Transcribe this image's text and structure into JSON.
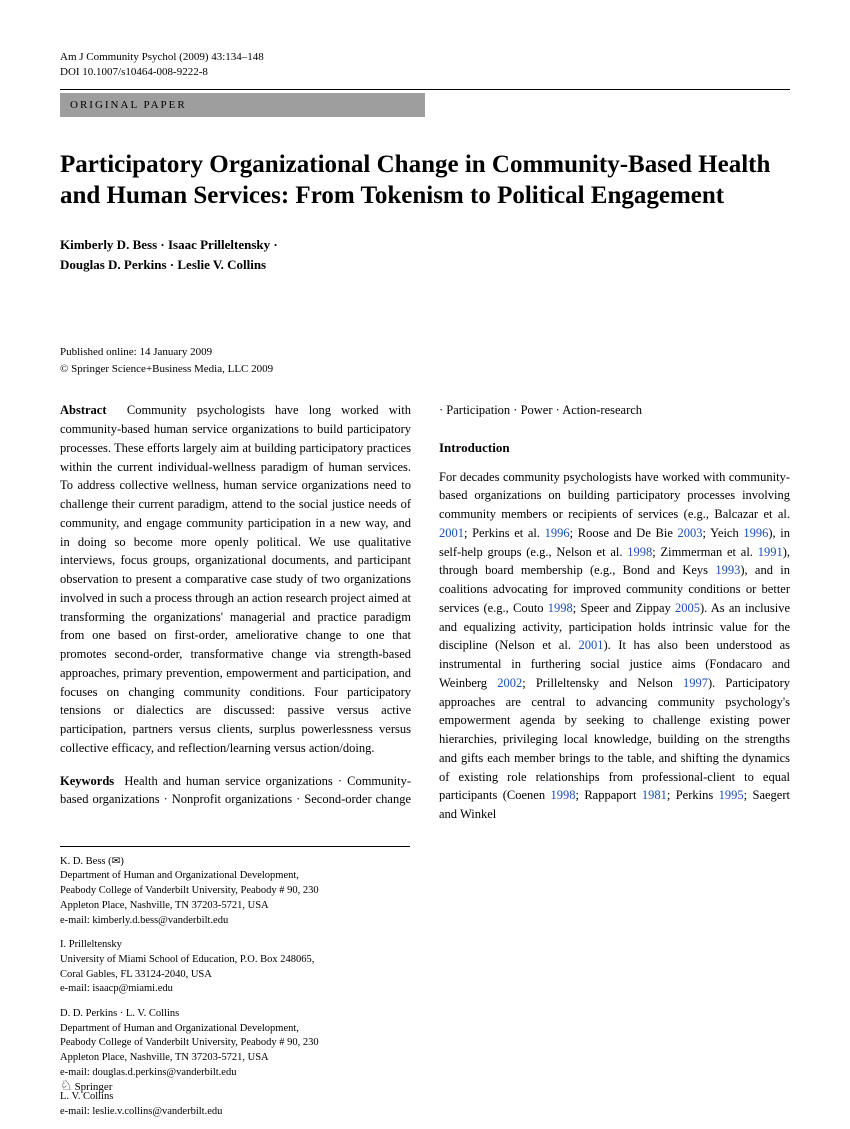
{
  "header": {
    "journal_line": "Am J Community Psychol (2009) 43:134–148",
    "doi_line": "DOI 10.1007/s10464-008-9222-8",
    "category": "ORIGINAL PAPER"
  },
  "title": "Participatory Organizational Change in Community-Based Health and Human Services: From Tokenism to Political Engagement",
  "authors_line1": "Kimberly D. Bess · Isaac Prilleltensky ·",
  "authors_line2": "Douglas D. Perkins · Leslie V. Collins",
  "pub": {
    "published": "Published online: 14 January 2009",
    "copyright": "© Springer Science+Business Media, LLC 2009"
  },
  "abstract": {
    "label": "Abstract",
    "text": "Community psychologists have long worked with community-based human service organizations to build participatory processes. These efforts largely aim at building participatory practices within the current individual-wellness paradigm of human services. To address collective wellness, human service organizations need to challenge their current paradigm, attend to the social justice needs of community, and engage community participation in a new way, and in doing so become more openly political. We use qualitative interviews, focus groups, organizational documents, and participant observation to present a comparative case study of two organizations involved in such a process through an action research project aimed at transforming the organizations' managerial and practice paradigm from one based on first-order, ameliorative change to one that promotes second-order, transformative change via strength-based approaches, primary prevention, empowerment and participation, and focuses on changing community conditions. Four participatory tensions or dialectics are discussed: passive versus active participation, partners versus clients, surplus powerlessness versus collective efficacy, and reflection/learning versus action/doing."
  },
  "keywords": {
    "label": "Keywords",
    "text": "Health and human service organizations · Community-based organizations · Nonprofit organizations · Second-order change · Participation · Power · Action-research"
  },
  "intro": {
    "heading": "Introduction",
    "p1a": "For decades community psychologists have worked with community-based organizations on building participatory processes involving community members or recipients of services (e.g., Balcazar et al. ",
    "r1": "2001",
    "p1b": "; Perkins et al. ",
    "r2": "1996",
    "p1c": "; Roose and De Bie ",
    "r3": "2003",
    "p1d": "; Yeich ",
    "r4": "1996",
    "p1e": "), in self-help groups (e.g., Nelson et al. ",
    "r5": "1998",
    "p1f": "; Zimmerman et al. ",
    "r6": "1991",
    "p1g": "), through board membership (e.g., Bond and Keys ",
    "r7": "1993",
    "p1h": "), and in coalitions advocating for improved community conditions or better services (e.g., Couto ",
    "r8": "1998",
    "p1i": "; Speer and Zippay ",
    "r9": "2005",
    "p1j": "). As an inclusive and equalizing activity, participation holds intrinsic value for the discipline (Nelson et al. ",
    "r10": "2001",
    "p1k": "). It has also been understood as instrumental in furthering social justice aims (Fondacaro and Weinberg ",
    "r11": "2002",
    "p1l": "; Prilleltensky and Nelson ",
    "r12": "1997",
    "p1m": "). Participatory approaches are central to advancing community psychology's empowerment agenda by seeking to challenge existing power hierarchies, privileging local knowledge, building on the strengths and gifts each member brings to the table, and shifting the dynamics of existing role relationships from professional-client to equal participants (Coenen ",
    "r13": "1998",
    "p1n": "; Rappaport ",
    "r14": "1981",
    "p1o": "; Perkins ",
    "r15": "1995",
    "p1p": "; Saegert and Winkel"
  },
  "affiliations": {
    "a1_name": "K. D. Bess (✉)",
    "a1_dept": "Department of Human and Organizational Development,",
    "a1_addr1": "Peabody College of Vanderbilt University, Peabody # 90, 230",
    "a1_addr2": "Appleton Place, Nashville, TN 37203-5721, USA",
    "a1_email": "e-mail: kimberly.d.bess@vanderbilt.edu",
    "a2_name": "I. Prilleltensky",
    "a2_addr1": "University of Miami School of Education, P.O. Box 248065,",
    "a2_addr2": "Coral Gables, FL 33124-2040, USA",
    "a2_email": "e-mail: isaacp@miami.edu",
    "a3_name": "D. D. Perkins · L. V. Collins",
    "a3_dept": "Department of Human and Organizational Development,",
    "a3_addr1": "Peabody College of Vanderbilt University, Peabody # 90, 230",
    "a3_addr2": "Appleton Place, Nashville, TN 37203-5721, USA",
    "a3_email": "e-mail: douglas.d.perkins@vanderbilt.edu",
    "a4_name": "L. V. Collins",
    "a4_email": "e-mail: leslie.v.collins@vanderbilt.edu"
  },
  "publisher": "Springer"
}
